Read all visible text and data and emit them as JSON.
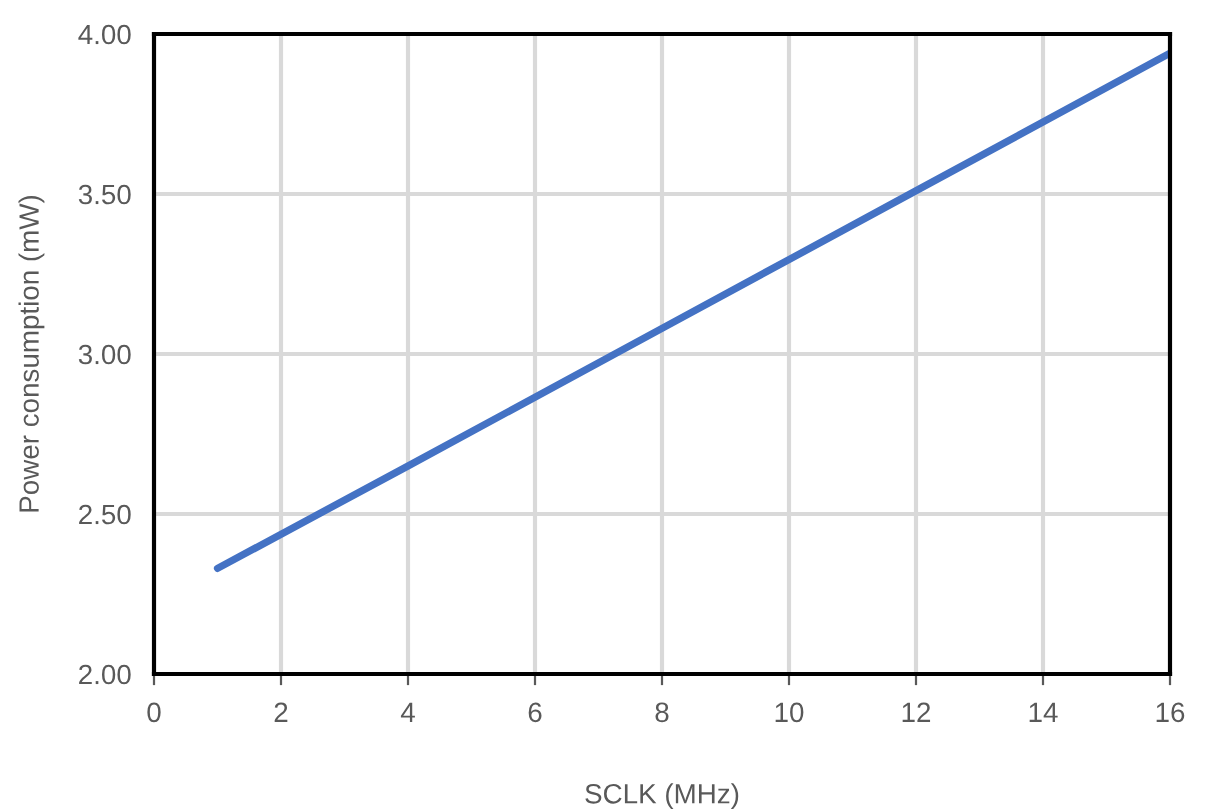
{
  "chart_data": {
    "type": "line",
    "xlabel": "SCLK (MHz)",
    "ylabel": "Power consumption (mW)",
    "x": [
      1,
      4,
      8,
      12,
      16
    ],
    "series": [
      {
        "color": "#4472c4",
        "values": [
          2.33,
          2.65,
          3.08,
          3.51,
          3.94
        ]
      }
    ],
    "xlim": [
      0,
      16
    ],
    "xticks": [
      0,
      2,
      4,
      6,
      8,
      10,
      12,
      14,
      16
    ],
    "ylim": [
      2,
      4
    ],
    "yticks": [
      {
        "value": 2,
        "label": "2.00"
      },
      {
        "value": 2.5,
        "label": "2.50"
      },
      {
        "value": 3,
        "label": "3.00"
      },
      {
        "value": 3.5,
        "label": "3.50"
      },
      {
        "value": 4,
        "label": "4.00"
      }
    ],
    "grid": true,
    "marker": "none",
    "line_style": "solid"
  }
}
